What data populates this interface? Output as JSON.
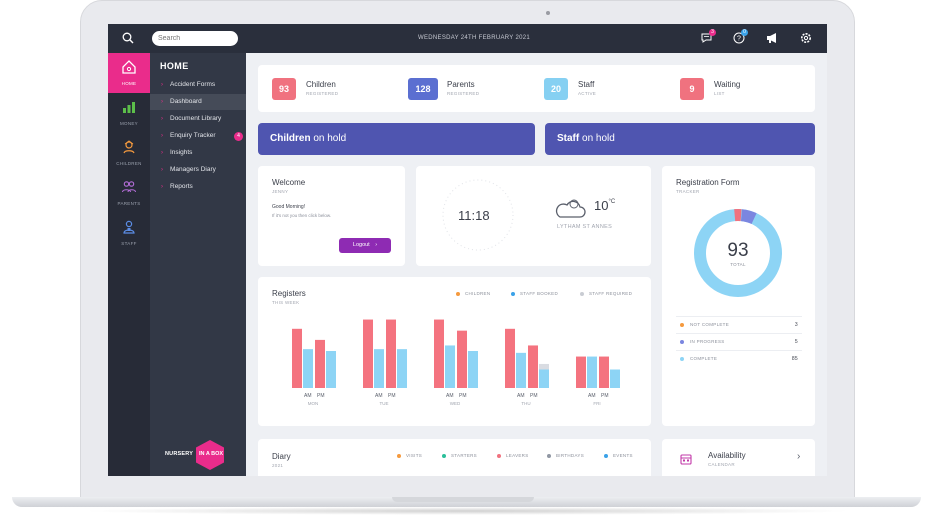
{
  "topbar": {
    "search_placeholder": "Search",
    "date": "WEDNESDAY 24TH FEBRUARY 2021",
    "messages_badge": "3",
    "help_badge": "0",
    "icons": [
      "search-icon",
      "chat-icon",
      "help-icon",
      "megaphone-icon",
      "settings-icon"
    ]
  },
  "rail": {
    "items": [
      {
        "label": "HOME",
        "icon": "home-icon"
      },
      {
        "label": "MONEY",
        "icon": "bar-chart-icon"
      },
      {
        "label": "CHILDREN",
        "icon": "child-icon"
      },
      {
        "label": "PARENTS",
        "icon": "parents-icon"
      },
      {
        "label": "STAFF",
        "icon": "staff-icon"
      }
    ]
  },
  "subnav": {
    "title": "HOME",
    "items": [
      {
        "label": "Accident Forms"
      },
      {
        "label": "Dashboard"
      },
      {
        "label": "Document Library"
      },
      {
        "label": "Enquiry Tracker",
        "badge": "4"
      },
      {
        "label": "Insights"
      },
      {
        "label": "Managers Diary"
      },
      {
        "label": "Reports"
      }
    ],
    "logo_left": "NURSERY",
    "logo_right": "IN A BOX"
  },
  "stats": [
    {
      "value": "93",
      "label": "Children",
      "sub": "REGISTERED",
      "color": "#f0727f"
    },
    {
      "value": "128",
      "label": "Parents",
      "sub": "REGISTERED",
      "color": "#5b6fd1"
    },
    {
      "value": "20",
      "label": "Staff",
      "sub": "ACTIVE",
      "color": "#86d0f2"
    },
    {
      "value": "9",
      "label": "Waiting",
      "sub": "LIST",
      "color": "#f0727f"
    }
  ],
  "hold": {
    "children_bold": "Children",
    "children_rest": " on hold",
    "staff_bold": "Staff",
    "staff_rest": " on hold"
  },
  "welcome": {
    "title": "Welcome",
    "name": "JENNY",
    "greeting": "Good Morning!",
    "note": "If it's not you then click below.",
    "logout": "Logout"
  },
  "clock": {
    "time": "11:18",
    "temperature": "10",
    "unit": "°C",
    "location": "LYTHAM ST ANNES"
  },
  "registration": {
    "title": "Registration Form",
    "sub": "TRACKER",
    "total": "93",
    "total_label": "TOTAL",
    "rows": [
      {
        "label": "NOT COMPLETE",
        "count": "3",
        "color": "#f0727f"
      },
      {
        "label": "IN PROGRESS",
        "count": "5",
        "color": "#7b86e0"
      },
      {
        "label": "COMPLETE",
        "count": "85",
        "color": "#8dd4f5"
      }
    ]
  },
  "registers": {
    "title": "Registers",
    "sub": "THIS WEEK",
    "legend": [
      {
        "label": "CHILDREN",
        "color": "#f59a3e"
      },
      {
        "label": "STAFF BOOKED",
        "color": "#3aa2e8"
      },
      {
        "label": "STAFF REQUIRED",
        "color": "#c9ccd3"
      }
    ]
  },
  "chart_data": {
    "type": "bar",
    "title": "Registers",
    "categories": [
      "MON",
      "TUE",
      "WED",
      "THU",
      "FRI"
    ],
    "sub_categories": [
      "AM",
      "PM"
    ],
    "ylim": [
      0,
      40
    ],
    "series": [
      {
        "name": "CHILDREN",
        "color": "#f4737f",
        "values": [
          [
            32,
            26
          ],
          [
            37,
            37
          ],
          [
            37,
            31
          ],
          [
            32,
            23
          ],
          [
            17,
            17
          ]
        ]
      },
      {
        "name": "STAFF BOOKED",
        "color": "#8dd4f5",
        "values": [
          [
            21,
            20
          ],
          [
            21,
            21
          ],
          [
            23,
            20
          ],
          [
            19,
            10
          ],
          [
            17,
            10
          ]
        ]
      },
      {
        "name": "STAFF REQUIRED",
        "color": "#d9dce2",
        "values": [
          [
            0,
            0
          ],
          [
            0,
            0
          ],
          [
            0,
            0
          ],
          [
            0,
            13
          ],
          [
            0,
            0
          ]
        ]
      }
    ]
  },
  "diary": {
    "title": "Diary",
    "sub": "2021",
    "legend": [
      {
        "label": "VISITS",
        "color": "#f59a3e"
      },
      {
        "label": "STARTERS",
        "color": "#2bbf9a"
      },
      {
        "label": "LEAVERS",
        "color": "#f0727f"
      },
      {
        "label": "BIRTHDAYS",
        "color": "#9097a3"
      },
      {
        "label": "EVENTS",
        "color": "#3aa2e8"
      }
    ]
  },
  "availability": {
    "title": "Availability",
    "sub": "CALENDAR"
  }
}
